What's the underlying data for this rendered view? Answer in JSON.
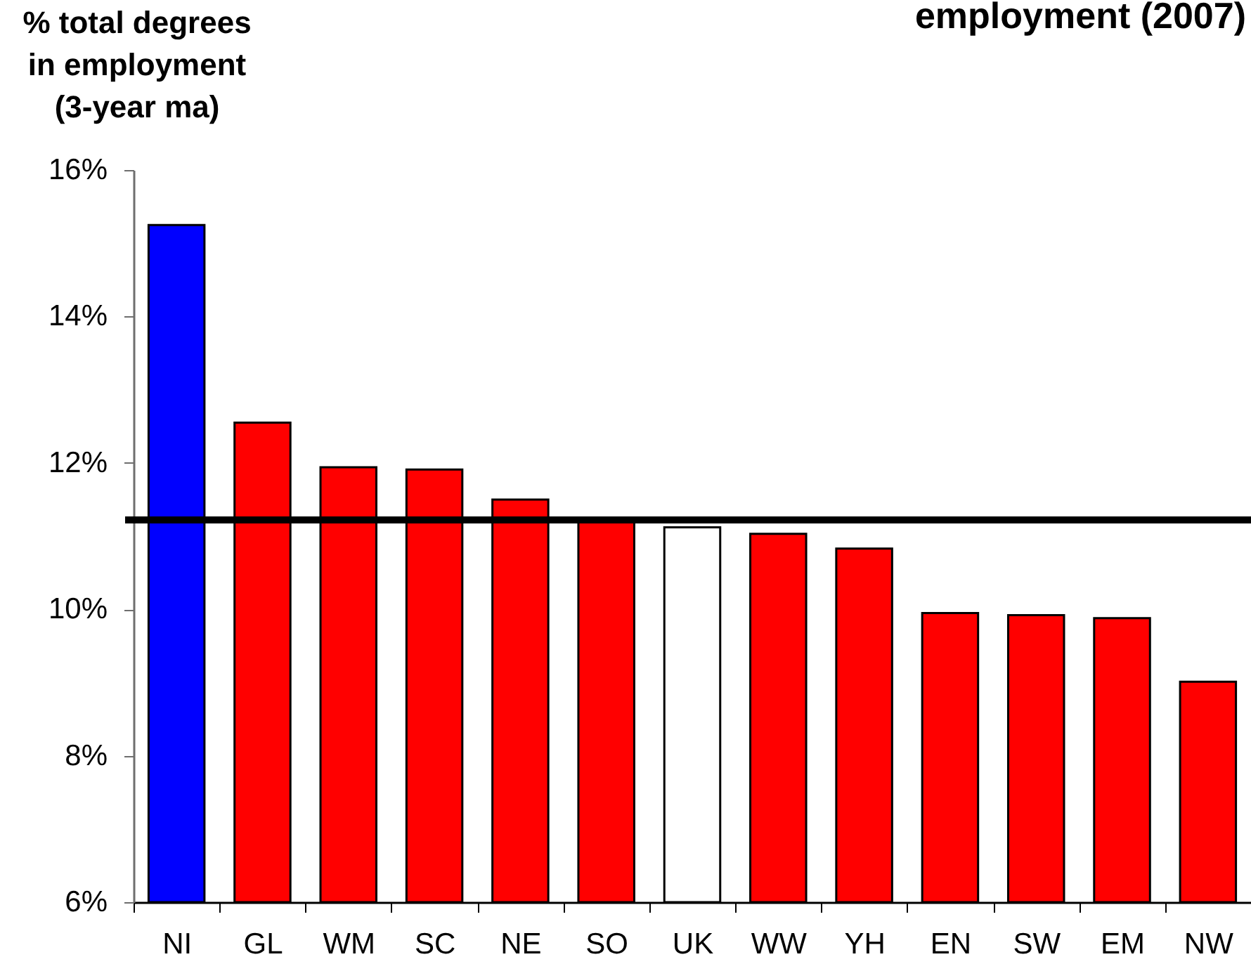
{
  "chart_data": {
    "type": "bar",
    "title": "employment (2007)",
    "ylabel": "% total degrees\nin employment\n(3-year ma)",
    "categories": [
      "NI",
      "GL",
      "WM",
      "SC",
      "NE",
      "SO",
      "UK",
      "WW",
      "YH",
      "EN",
      "SW",
      "EM",
      "NW"
    ],
    "values": [
      15.25,
      12.55,
      11.94,
      11.91,
      11.5,
      11.19,
      11.12,
      11.03,
      10.83,
      9.95,
      9.92,
      9.88,
      9.01
    ],
    "colors": [
      "#0000ff",
      "#ff0000",
      "#ff0000",
      "#ff0000",
      "#ff0000",
      "#ff0000",
      "#ffffff",
      "#ff0000",
      "#ff0000",
      "#ff0000",
      "#ff0000",
      "#ff0000",
      "#ff0000"
    ],
    "ylim": [
      6,
      16
    ],
    "yticks": [
      {
        "value": 6,
        "label": "6%"
      },
      {
        "value": 8,
        "label": "8%"
      },
      {
        "value": 10,
        "label": "10%"
      },
      {
        "value": 12,
        "label": "12%"
      },
      {
        "value": 14,
        "label": "14%"
      },
      {
        "value": 16,
        "label": "16%"
      }
    ],
    "ref_lines": [
      {
        "axis": "y",
        "value": 11.22,
        "color": "#000000"
      }
    ]
  }
}
